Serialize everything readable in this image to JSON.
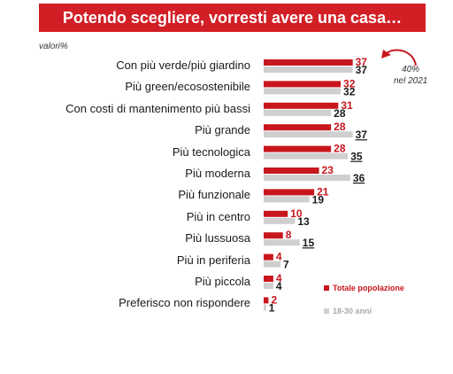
{
  "title": "Potendo scegliere, vorresti avere una casa…",
  "units_label": "valori%",
  "note_value": "40%",
  "note_year": "nel 2021",
  "legend": {
    "series1": "Totale popolazione",
    "series2": "18-30 anni"
  },
  "colors": {
    "series1": "#c8161d",
    "series2": "#cfcfcf",
    "title_bg": "#d21f26",
    "text": "#1a1a1a"
  },
  "chart_data": {
    "type": "bar",
    "orientation": "horizontal",
    "title": "Potendo scegliere, vorresti avere una casa…",
    "categories": [
      "Con più verde/più giardino",
      "Più green/ecosostenibile",
      "Con costi di mantenimento più bassi",
      "Più grande",
      "Più tecnologica",
      "Più moderna",
      "Più funzionale",
      "Più in centro",
      "Più lussuosa",
      "Più in periferia",
      "Più piccola",
      "Preferisco non rispondere"
    ],
    "series": [
      {
        "name": "Totale popolazione",
        "values": [
          37,
          32,
          31,
          28,
          28,
          23,
          21,
          10,
          8,
          4,
          4,
          2
        ]
      },
      {
        "name": "18-30 anni",
        "values": [
          37,
          32,
          28,
          37,
          35,
          36,
          19,
          13,
          15,
          7,
          4,
          1
        ]
      }
    ],
    "underlined": [
      false,
      false,
      false,
      true,
      true,
      true,
      false,
      false,
      true,
      false,
      false,
      false
    ],
    "annotation": {
      "category": "Con più verde/più giardino",
      "text": "40% nel 2021"
    },
    "legend_position": "bottom-right",
    "grid": false
  }
}
